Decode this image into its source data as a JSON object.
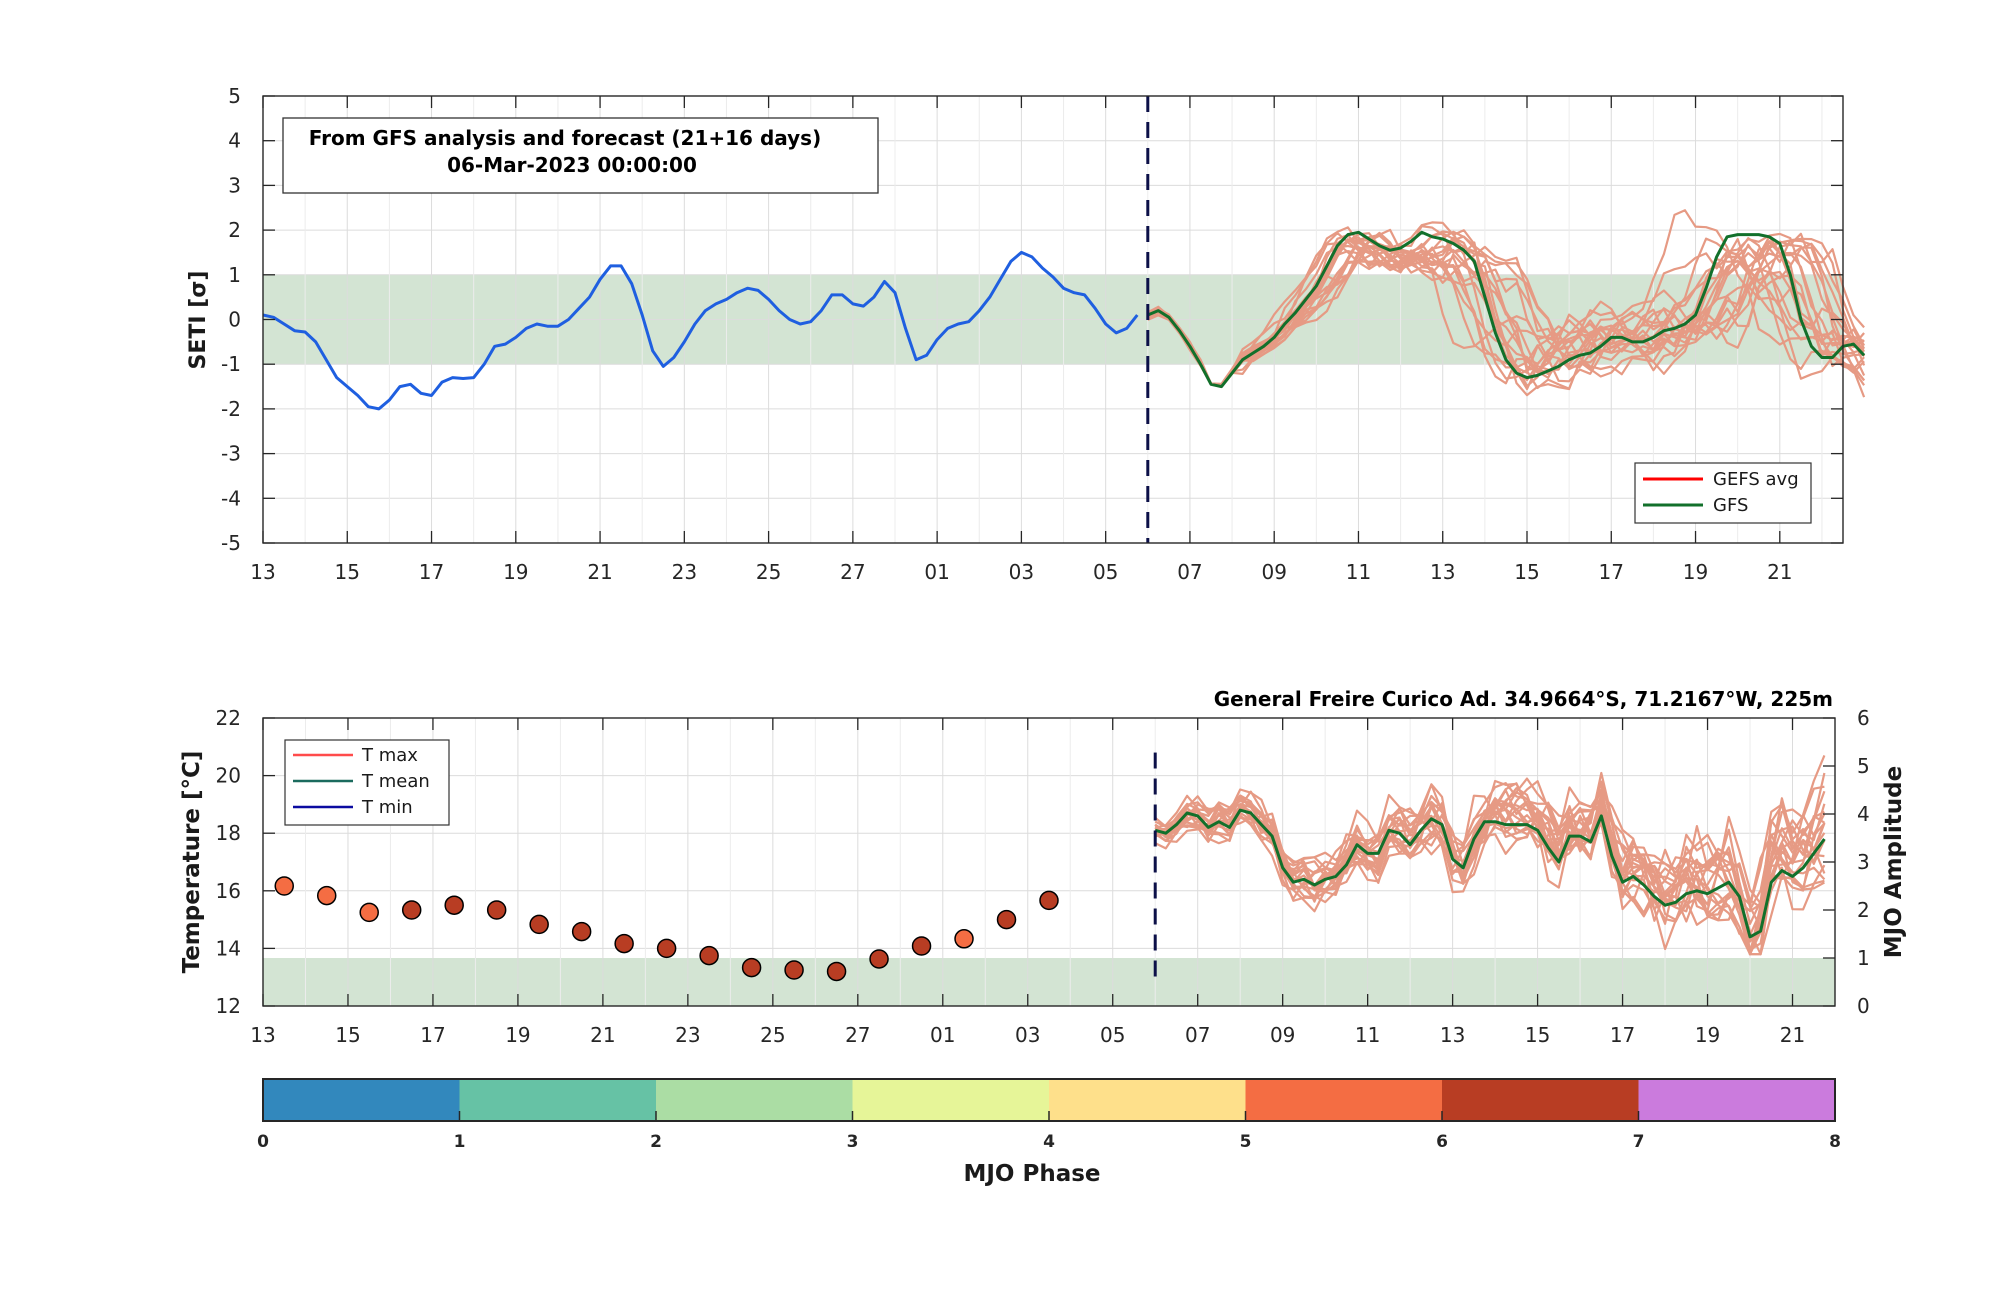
{
  "colors": {
    "band": "#d3e4d3",
    "analysis": "#1f5fe0",
    "ensemble": "#e69a84",
    "gfs": "#12702b",
    "gefs_avg": "#ff0000",
    "dashed": "#0c1048",
    "t_max": "#ff4b4b",
    "t_mean": "#1b6b5e",
    "t_min": "#0b0ba0",
    "mjo_phase_colors": [
      "#3288bd",
      "#66c2a5",
      "#abdda4",
      "#e6f598",
      "#fee08b",
      "#f46d43",
      "#b83d23",
      "#cb7bdd"
    ]
  },
  "chart_data": [
    {
      "type": "line",
      "ylabel": "SETI [σ]",
      "xlabel": "",
      "xlim": [
        0,
        37.5
      ],
      "ylim": [
        -5,
        5
      ],
      "yticks": [
        -5,
        -4,
        -3,
        -2,
        -1,
        0,
        1,
        2,
        3,
        4,
        5
      ],
      "x_tick_positions": [
        0,
        2,
        4,
        6,
        8,
        10,
        12,
        14,
        16,
        18,
        20,
        22,
        24,
        26,
        28,
        30,
        32,
        34,
        36
      ],
      "x_tick_labels": [
        "13",
        "15",
        "17",
        "19",
        "21",
        "23",
        "25",
        "27",
        "01",
        "03",
        "05",
        "07",
        "09",
        "11",
        "13",
        "15",
        "17",
        "19",
        "21"
      ],
      "forecast_start": 21,
      "band": [
        -1,
        1
      ],
      "annotation": [
        "From GFS analysis and forecast (21+16 days)",
        "06-Mar-2023 00:00:00"
      ],
      "legend": [
        "GEFS avg",
        "GFS"
      ],
      "series": [
        {
          "name": "analysis",
          "x_start": 0,
          "x_step": 0.25,
          "values": [
            0.1,
            0.05,
            -0.1,
            -0.25,
            -0.28,
            -0.5,
            -0.9,
            -1.3,
            -1.5,
            -1.7,
            -1.95,
            -2.0,
            -1.8,
            -1.5,
            -1.45,
            -1.65,
            -1.7,
            -1.4,
            -1.3,
            -1.32,
            -1.3,
            -1.0,
            -0.6,
            -0.55,
            -0.4,
            -0.2,
            -0.1,
            -0.15,
            -0.15,
            0.0,
            0.25,
            0.5,
            0.9,
            1.2,
            1.2,
            0.8,
            0.1,
            -0.7,
            -1.05,
            -0.85,
            -0.5,
            -0.1,
            0.2,
            0.35,
            0.45,
            0.6,
            0.7,
            0.65,
            0.45,
            0.2,
            0.0,
            -0.1,
            -0.05,
            0.2,
            0.55,
            0.55,
            0.35,
            0.3,
            0.5,
            0.85,
            0.6,
            -0.2,
            -0.9,
            -0.8,
            -0.45,
            -0.2,
            -0.1,
            -0.05,
            0.2,
            0.5,
            0.9,
            1.3,
            1.5,
            1.4,
            1.15,
            0.95,
            0.7,
            0.6,
            0.55,
            0.25,
            -0.1,
            -0.3,
            -0.2,
            0.1
          ]
        },
        {
          "name": "GFS",
          "x_start": 21,
          "x_step": 0.25,
          "values": [
            0.1,
            0.2,
            0.05,
            -0.25,
            -0.6,
            -1.0,
            -1.45,
            -1.5,
            -1.2,
            -0.9,
            -0.75,
            -0.6,
            -0.4,
            -0.1,
            0.15,
            0.45,
            0.75,
            1.2,
            1.65,
            1.9,
            1.95,
            1.8,
            1.65,
            1.55,
            1.6,
            1.75,
            1.95,
            1.85,
            1.8,
            1.7,
            1.55,
            1.3,
            0.5,
            -0.3,
            -0.9,
            -1.2,
            -1.3,
            -1.25,
            -1.15,
            -1.05,
            -0.9,
            -0.8,
            -0.75,
            -0.6,
            -0.4,
            -0.4,
            -0.5,
            -0.5,
            -0.4,
            -0.25,
            -0.2,
            -0.1,
            0.1,
            0.7,
            1.4,
            1.85,
            1.9,
            1.9,
            1.9,
            1.85,
            1.7,
            1.0,
            0.0,
            -0.6,
            -0.85,
            -0.85,
            -0.6,
            -0.55,
            -0.8
          ]
        }
      ]
    },
    {
      "type": "scatter",
      "title": "General Freire Curico Ad. 34.9664°S, 71.2167°W, 225m",
      "ylabel": "Temperature [°C]",
      "y2label": "MJO Amplitude",
      "xlim": [
        0,
        37
      ],
      "ylim": [
        12,
        22
      ],
      "yticks": [
        12,
        14,
        16,
        18,
        20,
        22
      ],
      "y2lim": [
        0,
        6
      ],
      "y2ticks": [
        0,
        1,
        2,
        3,
        4,
        5,
        6
      ],
      "x_tick_positions": [
        0,
        2,
        4,
        6,
        8,
        10,
        12,
        14,
        16,
        18,
        20,
        22,
        24,
        26,
        28,
        30,
        32,
        34,
        36
      ],
      "x_tick_labels": [
        "13",
        "15",
        "17",
        "19",
        "21",
        "23",
        "25",
        "27",
        "01",
        "03",
        "05",
        "07",
        "09",
        "11",
        "13",
        "15",
        "17",
        "19",
        "21"
      ],
      "forecast_start": 21,
      "amplitude_band": [
        0,
        1
      ],
      "legend": [
        "T max",
        "T mean",
        "T min"
      ],
      "mjo_points": [
        {
          "x": 0.5,
          "amplitude": 2.5,
          "phase": 5.5
        },
        {
          "x": 1.5,
          "amplitude": 2.3,
          "phase": 5.5
        },
        {
          "x": 2.5,
          "amplitude": 1.95,
          "phase": 5.5
        },
        {
          "x": 3.5,
          "amplitude": 2.0,
          "phase": 6.5
        },
        {
          "x": 4.5,
          "amplitude": 2.1,
          "phase": 6.5
        },
        {
          "x": 5.5,
          "amplitude": 2.0,
          "phase": 6.5
        },
        {
          "x": 6.5,
          "amplitude": 1.7,
          "phase": 6.5
        },
        {
          "x": 7.5,
          "amplitude": 1.55,
          "phase": 6.5
        },
        {
          "x": 8.5,
          "amplitude": 1.3,
          "phase": 6.5
        },
        {
          "x": 9.5,
          "amplitude": 1.2,
          "phase": 6.5
        },
        {
          "x": 10.5,
          "amplitude": 1.05,
          "phase": 6.5
        },
        {
          "x": 11.5,
          "amplitude": 0.8,
          "phase": 6.5
        },
        {
          "x": 12.5,
          "amplitude": 0.75,
          "phase": 6.5
        },
        {
          "x": 13.5,
          "amplitude": 0.72,
          "phase": 6.5
        },
        {
          "x": 14.5,
          "amplitude": 0.98,
          "phase": 6.5
        },
        {
          "x": 15.5,
          "amplitude": 1.25,
          "phase": 6.5
        },
        {
          "x": 16.5,
          "amplitude": 1.4,
          "phase": 5.5
        },
        {
          "x": 17.5,
          "amplitude": 1.8,
          "phase": 6.5
        },
        {
          "x": 18.5,
          "amplitude": 2.2,
          "phase": 6.5
        }
      ],
      "series": [
        {
          "name": "GFS",
          "x_start": 21,
          "x_step": 0.25,
          "values": [
            18.1,
            18.0,
            18.3,
            18.7,
            18.6,
            18.2,
            18.4,
            18.2,
            18.8,
            18.7,
            18.3,
            17.9,
            16.8,
            16.3,
            16.4,
            16.2,
            16.4,
            16.5,
            16.9,
            17.6,
            17.3,
            17.3,
            18.1,
            18.0,
            17.6,
            18.1,
            18.5,
            18.3,
            17.1,
            16.8,
            17.8,
            18.4,
            18.4,
            18.3,
            18.3,
            18.3,
            18.1,
            17.5,
            17.0,
            17.9,
            17.9,
            17.7,
            18.6,
            17.2,
            16.3,
            16.5,
            16.2,
            15.8,
            15.5,
            15.6,
            15.9,
            16.0,
            15.9,
            16.1,
            16.3,
            15.8,
            14.4,
            14.6,
            16.3,
            16.7,
            16.5,
            16.8,
            17.3,
            17.8
          ]
        }
      ]
    },
    {
      "type": "colorbar",
      "xlabel": "MJO Phase",
      "range": [
        0,
        8
      ],
      "tick_labels": [
        "0",
        "1",
        "2",
        "3",
        "4",
        "5",
        "6",
        "7",
        "8"
      ]
    }
  ]
}
